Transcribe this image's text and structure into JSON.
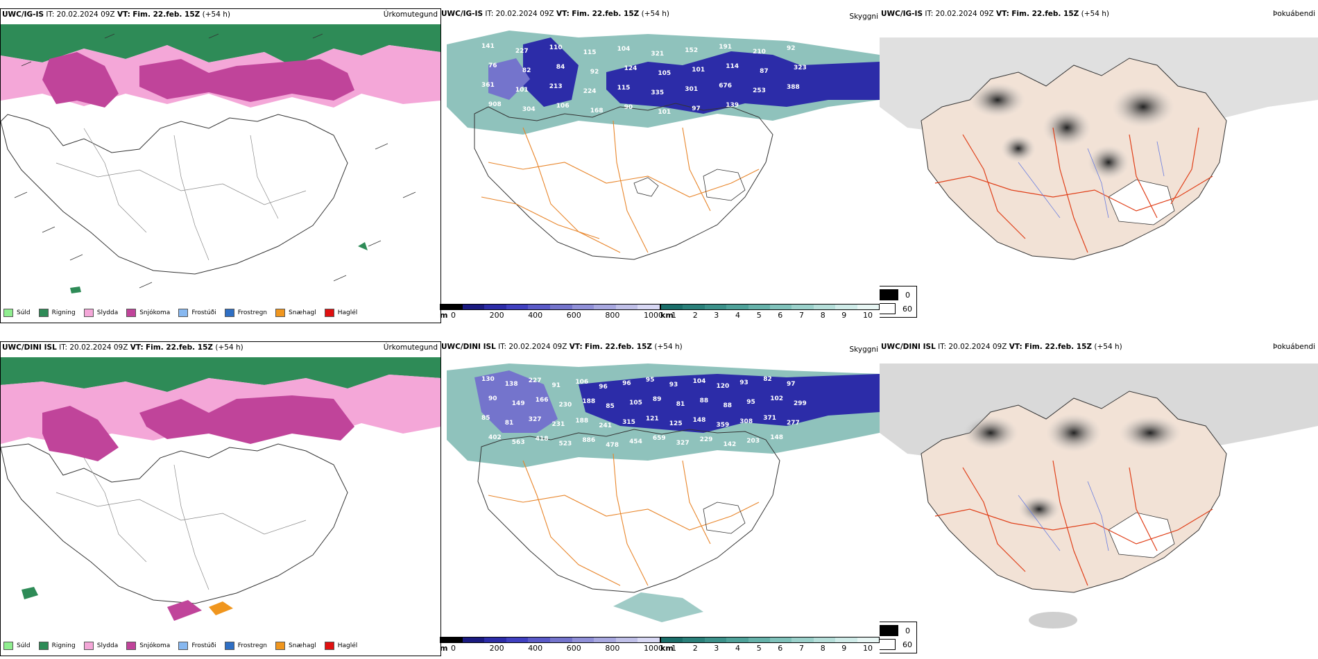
{
  "rows": [
    {
      "precip": {
        "model": "UWC/IG-IS",
        "it_label": "IT:",
        "it_value": "20.02.2024 09Z",
        "vt_label": "VT:",
        "vt_value": "Fim. 22.feb. 15Z",
        "lead": "(+54 h)",
        "title": "Úrkomutegund"
      },
      "cloud": {
        "model": "UWC/IG-IS",
        "it_label": "IT:",
        "it_value": "20.02.2024 09Z",
        "vt_label": "VT:",
        "vt_value": "Fim. 22.feb. 15Z",
        "lead": "(+54 h)",
        "title": "Skyggni",
        "labels": [
          "141",
          "227",
          "110",
          "115",
          "104",
          "321",
          "152",
          "191",
          "210",
          "92",
          "76",
          "82",
          "84",
          "92",
          "124",
          "105",
          "101",
          "114",
          "87",
          "323",
          "361",
          "101",
          "213",
          "224",
          "115",
          "335",
          "301",
          "676",
          "253",
          "388",
          "908",
          "304",
          "106",
          "168",
          "90",
          "101",
          "97",
          "139"
        ]
      },
      "fog": {
        "model": "UWC/IG-IS",
        "it_label": "IT:",
        "it_value": "20.02.2024 09Z",
        "vt_label": "VT:",
        "vt_value": "Fim. 22.feb. 15Z",
        "lead": "(+54 h)",
        "title": "Þokuábendi"
      }
    },
    {
      "precip": {
        "model": "UWC/DINI ISL",
        "it_label": "IT:",
        "it_value": "20.02.2024 09Z",
        "vt_label": "VT:",
        "vt_value": "Fim. 22.feb. 15Z",
        "lead": "(+54 h)",
        "title": "Úrkomutegund"
      },
      "cloud": {
        "model": "UWC/DINI ISL",
        "it_label": "IT:",
        "it_value": "20.02.2024 09Z",
        "vt_label": "VT:",
        "vt_value": "Fim. 22.feb. 15Z",
        "lead": "(+54 h)",
        "title": "Skyggni",
        "labels": [
          "130",
          "138",
          "227",
          "91",
          "106",
          "96",
          "96",
          "95",
          "93",
          "104",
          "120",
          "93",
          "82",
          "97",
          "90",
          "149",
          "166",
          "230",
          "188",
          "85",
          "105",
          "89",
          "81",
          "88",
          "88",
          "95",
          "102",
          "299",
          "85",
          "81",
          "327",
          "231",
          "188",
          "241",
          "315",
          "121",
          "125",
          "148",
          "359",
          "308",
          "371",
          "277",
          "402",
          "563",
          "418",
          "523",
          "886",
          "478",
          "454",
          "659",
          "327",
          "229",
          "142",
          "203",
          "148"
        ]
      },
      "fog": {
        "model": "UWC/DINI ISL",
        "it_label": "IT:",
        "it_value": "20.02.2024 09Z",
        "vt_label": "VT:",
        "vt_value": "Fim. 22.feb. 15Z",
        "lead": "(+54 h)",
        "title": "Þokuábendi"
      }
    }
  ],
  "precip_legend": [
    {
      "label": "Súld",
      "color": "#90ee90"
    },
    {
      "label": "Rigning",
      "color": "#2e8b57"
    },
    {
      "label": "Slydda",
      "color": "#f4a7d8"
    },
    {
      "label": "Snjókoma",
      "color": "#c0449a"
    },
    {
      "label": "Frostúði",
      "color": "#87b8f0"
    },
    {
      "label": "Frostregn",
      "color": "#2f6fc4"
    },
    {
      "label": "Snæhagl",
      "color": "#f0961e"
    },
    {
      "label": "Haglél",
      "color": "#e01010"
    }
  ],
  "cloud_scale": {
    "base_unit": "m",
    "base_ticks": [
      "0",
      "200",
      "400",
      "600",
      "800",
      "1000"
    ],
    "base_colors": [
      "#000000",
      "#1a1a80",
      "#2c2ca8",
      "#4040c0",
      "#5a5ac8",
      "#7474cc",
      "#9090d8",
      "#a8a8e0",
      "#c0c0e8",
      "#d8d8f4"
    ],
    "vis_unit": "km",
    "vis_ticks": [
      "1",
      "2",
      "3",
      "4",
      "5",
      "6",
      "7",
      "8",
      "9",
      "10"
    ],
    "vis_colors": [
      "#1a6e6a",
      "#2a807a",
      "#3c918a",
      "#4fa29a",
      "#66b2aa",
      "#80c2bb",
      "#9bd1cb",
      "#b6dfda",
      "#d0ece9",
      "#e8f6f4"
    ]
  },
  "fog_legend": [
    {
      "label": "0",
      "color": "#000000"
    },
    {
      "label": "60",
      "color": "#ffffff"
    }
  ]
}
